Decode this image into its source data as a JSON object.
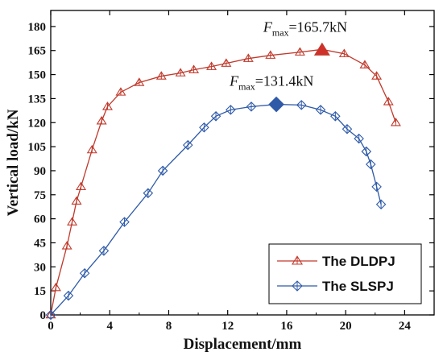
{
  "chart_data": {
    "type": "line",
    "xlabel": "Displacement/mm",
    "ylabel": "Vertical load/kN",
    "xlim": [
      0,
      26
    ],
    "ylim": [
      0,
      190
    ],
    "xticks": [
      0,
      4,
      8,
      12,
      16,
      20,
      24
    ],
    "yticks": [
      0,
      15,
      30,
      45,
      60,
      75,
      90,
      105,
      120,
      135,
      150,
      165,
      180
    ],
    "grid": false,
    "legend_position": "bottom-right",
    "series": [
      {
        "name": "The DLDPJ",
        "color": "#c0392b",
        "marker": "triangle",
        "x": [
          0,
          0.35,
          1.1,
          1.45,
          1.75,
          2.05,
          2.8,
          3.45,
          3.85,
          4.75,
          6.0,
          7.5,
          8.8,
          9.7,
          10.9,
          11.9,
          13.4,
          14.9,
          16.9,
          18.4,
          19.9,
          21.3,
          22.1,
          22.9,
          23.4
        ],
        "y": [
          0,
          17,
          43,
          58,
          71,
          80,
          103,
          121,
          130,
          139,
          145,
          149,
          151,
          153,
          155,
          157,
          160,
          162,
          164,
          165.7,
          163,
          156,
          149,
          133,
          120
        ]
      },
      {
        "name": "The SLSPJ",
        "color": "#2e5aa8",
        "marker": "diamond",
        "x": [
          0,
          1.2,
          2.3,
          3.6,
          5.0,
          6.6,
          7.6,
          9.3,
          10.4,
          11.2,
          12.2,
          13.6,
          15.3,
          17.0,
          18.3,
          19.3,
          20.1,
          20.9,
          21.4,
          21.7,
          22.1,
          22.4
        ],
        "y": [
          0,
          12,
          26,
          40,
          58,
          76,
          90,
          106,
          117,
          124,
          128,
          130,
          131.4,
          131,
          128,
          124,
          116,
          110,
          102,
          94,
          80,
          69
        ]
      }
    ],
    "peaks": [
      {
        "series": "The DLDPJ",
        "x": 18.4,
        "y": 165.7,
        "marker": "triangle",
        "label_main": "F",
        "label_sub": "max",
        "label_value": "=165.7kN"
      },
      {
        "series": "The SLSPJ",
        "x": 15.3,
        "y": 131.4,
        "marker": "diamond",
        "label_main": "F",
        "label_sub": "max",
        "label_value": "=131.4kN"
      }
    ]
  }
}
